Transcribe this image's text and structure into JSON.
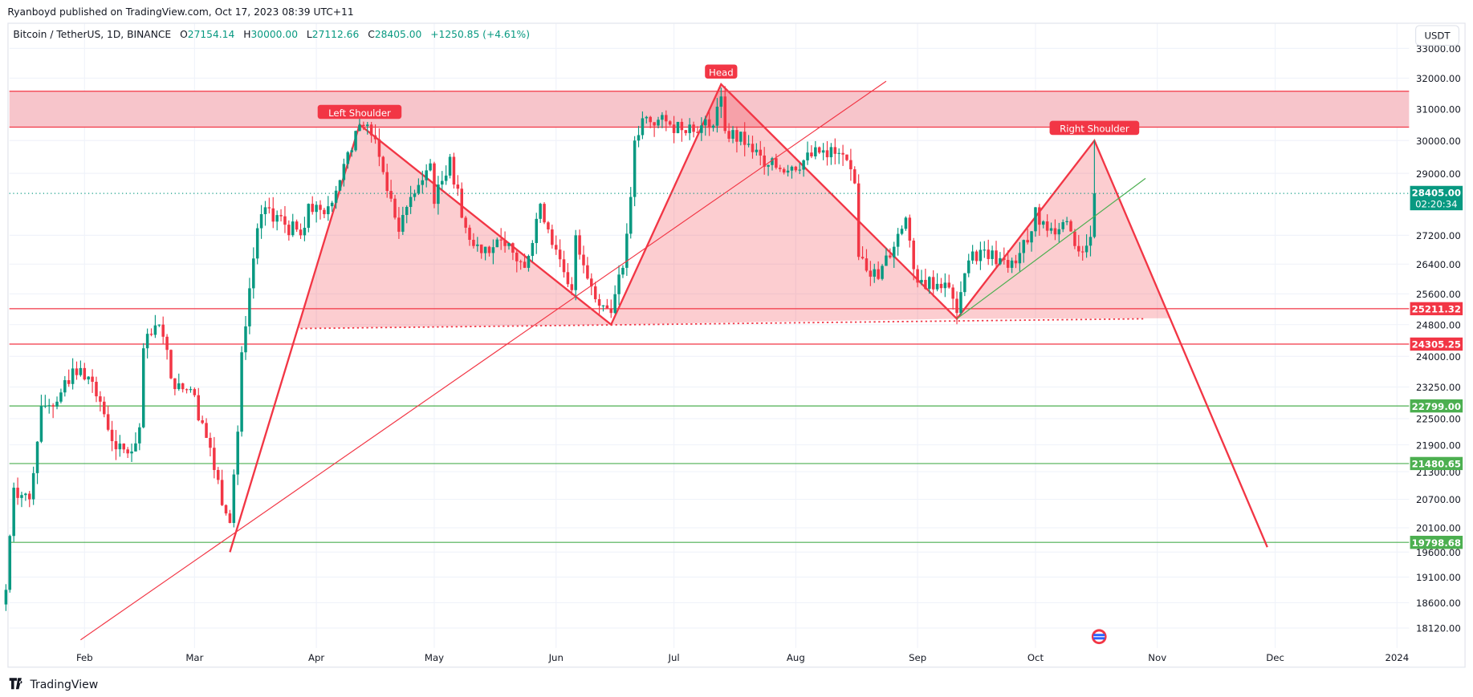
{
  "header": {
    "published": "Ryanboyd published on TradingView.com, Oct 17, 2023 08:39 UTC+11"
  },
  "legend": {
    "symbol": "Bitcoin / TetherUS, 1D, BINANCE",
    "o_label": "O",
    "o": "27154.14",
    "h_label": "H",
    "h": "30000.00",
    "l_label": "L",
    "l": "27112.66",
    "c_label": "C",
    "c": "28405.00",
    "change": "+1250.85 (+4.61%)"
  },
  "currency_button": "USDT",
  "footer": {
    "brand": "TradingView"
  },
  "colors": {
    "up": "#089981",
    "down": "#f23645",
    "zone": "#f7c5cb",
    "green_line": "#4caf50",
    "grid": "#f0f3fa"
  },
  "chart_data": {
    "type": "candlestick",
    "y_scale": "log",
    "ylim": [
      18000,
      33000
    ],
    "y_ticks": [
      "33000.00",
      "32000.00",
      "31000.00",
      "30000.00",
      "29000.00",
      "27200.00",
      "26400.00",
      "25600.00",
      "24800.00",
      "24000.00",
      "23250.00",
      "22500.00",
      "21900.00",
      "21300.00",
      "20700.00",
      "20100.00",
      "19600.00",
      "19100.00",
      "18600.00",
      "18120.00"
    ],
    "x_ticks": [
      {
        "label": "Feb",
        "date": "2023-02-01"
      },
      {
        "label": "Mar",
        "date": "2023-03-01"
      },
      {
        "label": "Apr",
        "date": "2023-04-01"
      },
      {
        "label": "May",
        "date": "2023-05-01"
      },
      {
        "label": "Jun",
        "date": "2023-06-01"
      },
      {
        "label": "Jul",
        "date": "2023-07-01"
      },
      {
        "label": "Aug",
        "date": "2023-08-01"
      },
      {
        "label": "Sep",
        "date": "2023-09-01"
      },
      {
        "label": "Oct",
        "date": "2023-10-01"
      },
      {
        "label": "Nov",
        "date": "2023-11-01"
      },
      {
        "label": "Dec",
        "date": "2023-12-01"
      },
      {
        "label": "2024",
        "date": "2024-01-01"
      }
    ],
    "close_anchors": [
      [
        "2023-01-12",
        18850
      ],
      [
        "2023-01-13",
        19930
      ],
      [
        "2023-01-14",
        20950
      ],
      [
        "2023-01-18",
        20700
      ],
      [
        "2023-01-21",
        22800
      ],
      [
        "2023-01-25",
        22900
      ],
      [
        "2023-01-29",
        23700
      ],
      [
        "2023-02-02",
        23500
      ],
      [
        "2023-02-05",
        22900
      ],
      [
        "2023-02-09",
        21800
      ],
      [
        "2023-02-13",
        21750
      ],
      [
        "2023-02-15",
        22300
      ],
      [
        "2023-02-16",
        24200
      ],
      [
        "2023-02-20",
        24800
      ],
      [
        "2023-02-24",
        23200
      ],
      [
        "2023-02-28",
        23200
      ],
      [
        "2023-03-03",
        22400
      ],
      [
        "2023-03-09",
        20400
      ],
      [
        "2023-03-10",
        20200
      ],
      [
        "2023-03-12",
        22200
      ],
      [
        "2023-03-13",
        24100
      ],
      [
        "2023-03-17",
        27400
      ],
      [
        "2023-03-19",
        28000
      ],
      [
        "2023-03-24",
        27500
      ],
      [
        "2023-03-28",
        27200
      ],
      [
        "2023-03-30",
        28100
      ],
      [
        "2023-04-03",
        27800
      ],
      [
        "2023-04-10",
        29700
      ],
      [
        "2023-04-11",
        30300
      ],
      [
        "2023-04-14",
        30500
      ],
      [
        "2023-04-17",
        29500
      ],
      [
        "2023-04-20",
        28250
      ],
      [
        "2023-04-22",
        27300
      ],
      [
        "2023-04-25",
        28300
      ],
      [
        "2023-04-26",
        28400
      ],
      [
        "2023-04-30",
        29300
      ],
      [
        "2023-05-01",
        28100
      ],
      [
        "2023-05-05",
        29500
      ],
      [
        "2023-05-08",
        27700
      ],
      [
        "2023-05-11",
        26900
      ],
      [
        "2023-05-19",
        26900
      ],
      [
        "2023-05-24",
        26300
      ],
      [
        "2023-05-28",
        28100
      ],
      [
        "2023-06-01",
        26800
      ],
      [
        "2023-06-05",
        25700
      ],
      [
        "2023-06-06",
        27200
      ],
      [
        "2023-06-10",
        25800
      ],
      [
        "2023-06-15",
        25100
      ],
      [
        "2023-06-18",
        26300
      ],
      [
        "2023-06-20",
        28300
      ],
      [
        "2023-06-21",
        30000
      ],
      [
        "2023-06-23",
        30700
      ],
      [
        "2023-06-30",
        30500
      ],
      [
        "2023-07-05",
        30500
      ],
      [
        "2023-07-10",
        30400
      ],
      [
        "2023-07-13",
        31400
      ],
      [
        "2023-07-14",
        30300
      ],
      [
        "2023-07-20",
        29900
      ],
      [
        "2023-07-24",
        29200
      ],
      [
        "2023-07-31",
        29200
      ],
      [
        "2023-08-08",
        29700
      ],
      [
        "2023-08-14",
        29400
      ],
      [
        "2023-08-16",
        28700
      ],
      [
        "2023-08-17",
        26600
      ],
      [
        "2023-08-22",
        26000
      ],
      [
        "2023-08-29",
        27700
      ],
      [
        "2023-09-01",
        25900
      ],
      [
        "2023-09-08",
        25900
      ],
      [
        "2023-09-11",
        25100
      ],
      [
        "2023-09-14",
        26500
      ],
      [
        "2023-09-18",
        26800
      ],
      [
        "2023-09-24",
        26300
      ],
      [
        "2023-09-29",
        27000
      ],
      [
        "2023-10-01",
        28000
      ],
      [
        "2023-10-02",
        27500
      ],
      [
        "2023-10-05",
        27400
      ],
      [
        "2023-10-09",
        27600
      ],
      [
        "2023-10-11",
        26900
      ],
      [
        "2023-10-12",
        26750
      ],
      [
        "2023-10-15",
        27154.14
      ],
      [
        "2023-10-16",
        28405
      ]
    ],
    "last_candle": {
      "date": "2023-10-16",
      "open": 27154.14,
      "high": 30000.0,
      "low": 27112.66,
      "close": 28405.0
    },
    "current_price": {
      "value": "28405.00",
      "countdown": "02:20:34"
    },
    "zone": {
      "top": 31570,
      "bottom": 30420
    },
    "horizontal_lines": [
      {
        "value": "25211.32",
        "color": "#f23645"
      },
      {
        "value": "24305.25",
        "color": "#f23645"
      },
      {
        "value": "22799.00",
        "color": "#4caf50"
      },
      {
        "value": "21480.65",
        "color": "#4caf50"
      },
      {
        "value": "19798.68",
        "color": "#4caf50"
      }
    ],
    "pattern": {
      "points": [
        [
          "2023-03-10",
          19600
        ],
        [
          "2023-04-12",
          30500
        ],
        [
          "2023-06-15",
          24800
        ],
        [
          "2023-07-13",
          31800
        ],
        [
          "2023-09-11",
          24950
        ],
        [
          "2023-10-16",
          30000
        ],
        [
          "2023-11-29",
          19700
        ]
      ],
      "neckline": [
        [
          "2023-03-28",
          24700
        ],
        [
          "2023-10-29",
          24950
        ]
      ],
      "labels": [
        "Left Shoulder",
        "Head",
        "Right Shoulder"
      ]
    },
    "trendlines": [
      {
        "from": [
          "2023-01-31",
          17900
        ],
        "to": [
          "2023-08-24",
          31900
        ],
        "color": "#f23645"
      },
      {
        "from": [
          "2023-09-11",
          24950
        ],
        "to": [
          "2023-10-29",
          28850
        ],
        "color": "#4caf50"
      }
    ]
  }
}
